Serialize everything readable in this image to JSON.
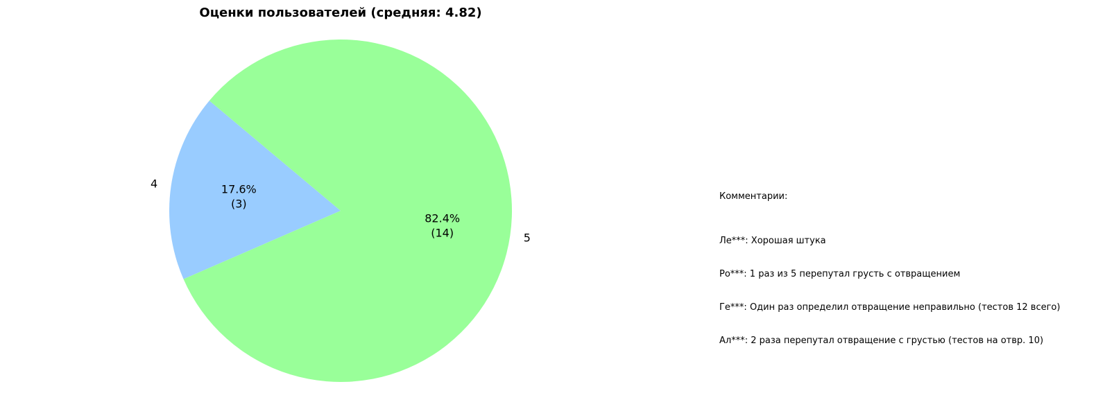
{
  "chart_data": {
    "type": "pie",
    "title": "Оценки пользователей (средняя: 4.82)",
    "categories": [
      "4",
      "5"
    ],
    "values": [
      3,
      14
    ],
    "percent_labels": [
      "17.6%",
      "82.4%"
    ],
    "count_labels": [
      "(3)",
      "(14)"
    ],
    "colors": [
      "#99ccff",
      "#99ff99"
    ],
    "start_angle_deg": 140,
    "direction": "counterclockwise"
  },
  "comments": {
    "title": "Комментарии:",
    "items": [
      "Ле***: Хорошая штука",
      "Ро***: 1 раз из 5 перепутал грусть с отвращением",
      "Ге***: Один раз определил отвращение неправильно (тестов 12 всего)",
      "Ал***: 2 раза перепутал отвращение с грустью (тестов на отвр. 10)"
    ]
  }
}
